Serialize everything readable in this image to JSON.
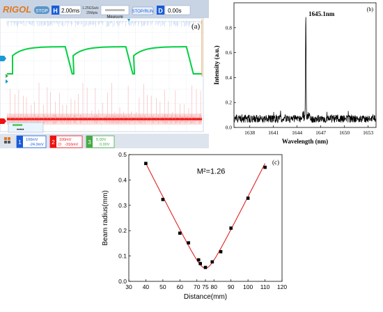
{
  "oscilloscope": {
    "brand": "RIGOL",
    "run_state": "STOP",
    "timebase_label": "H",
    "timebase_value": "2.00ms",
    "sample_rate": "1.25GSa/s",
    "memory_depth": "25Mpts",
    "measure_label": "Measure",
    "stop_run_label": "STOP/RUN",
    "delay_label": "D",
    "delay_value": "0.00s",
    "panel_label": "(a)",
    "ch1": {
      "num": "1",
      "scale": "100mV",
      "offset": "-24.0mV"
    },
    "ch2": {
      "num": "2",
      "scale": "100mV",
      "offset_prefix": "D",
      "offset": "-316mV"
    },
    "ch3": {
      "num": "3",
      "scale": "5.00V",
      "offset": "0.00V"
    },
    "menu_mask": "•••••",
    "colors": {
      "ch1": "#00d040",
      "ch2": "#ee1111",
      "ch3": "#44aa44",
      "accent": "#1a5cd8"
    }
  },
  "chart_data": [
    {
      "type": "line",
      "panel_label": "(b)",
      "xlabel": "Wavelength (nm)",
      "ylabel": "Intensity (a.u.)",
      "xlim": [
        1636,
        1654
      ],
      "ylim": [
        0,
        1.0
      ],
      "xticks": [
        1638,
        1641,
        1644,
        1647,
        1650,
        1653
      ],
      "yticks": [
        0.0,
        0.2,
        0.4,
        0.6,
        0.8
      ],
      "peak_annotation": "1645.1nm",
      "peak": {
        "x": 1645.1,
        "y": 0.91
      },
      "noise_floor": 0.07,
      "color": "#000000"
    },
    {
      "type": "scatter",
      "panel_label": "(c)",
      "annotation": "M²=1.26",
      "xlabel": "Distance(mm)",
      "ylabel": "Beam radius(mm)",
      "xlim": [
        30,
        120
      ],
      "ylim": [
        0.0,
        0.5
      ],
      "xticks": [
        30,
        40,
        50,
        60,
        70,
        75,
        80,
        90,
        100,
        110,
        120
      ],
      "yticks": [
        0.0,
        0.1,
        0.2,
        0.3,
        0.4,
        0.5
      ],
      "x": [
        40,
        50,
        60,
        65,
        71,
        72,
        75,
        79,
        84,
        90,
        100,
        110
      ],
      "y": [
        0.465,
        0.323,
        0.19,
        0.152,
        0.085,
        0.07,
        0.055,
        0.077,
        0.117,
        0.21,
        0.328,
        0.45
      ],
      "fit_color": "#e02020",
      "marker_color": "#000000"
    }
  ]
}
